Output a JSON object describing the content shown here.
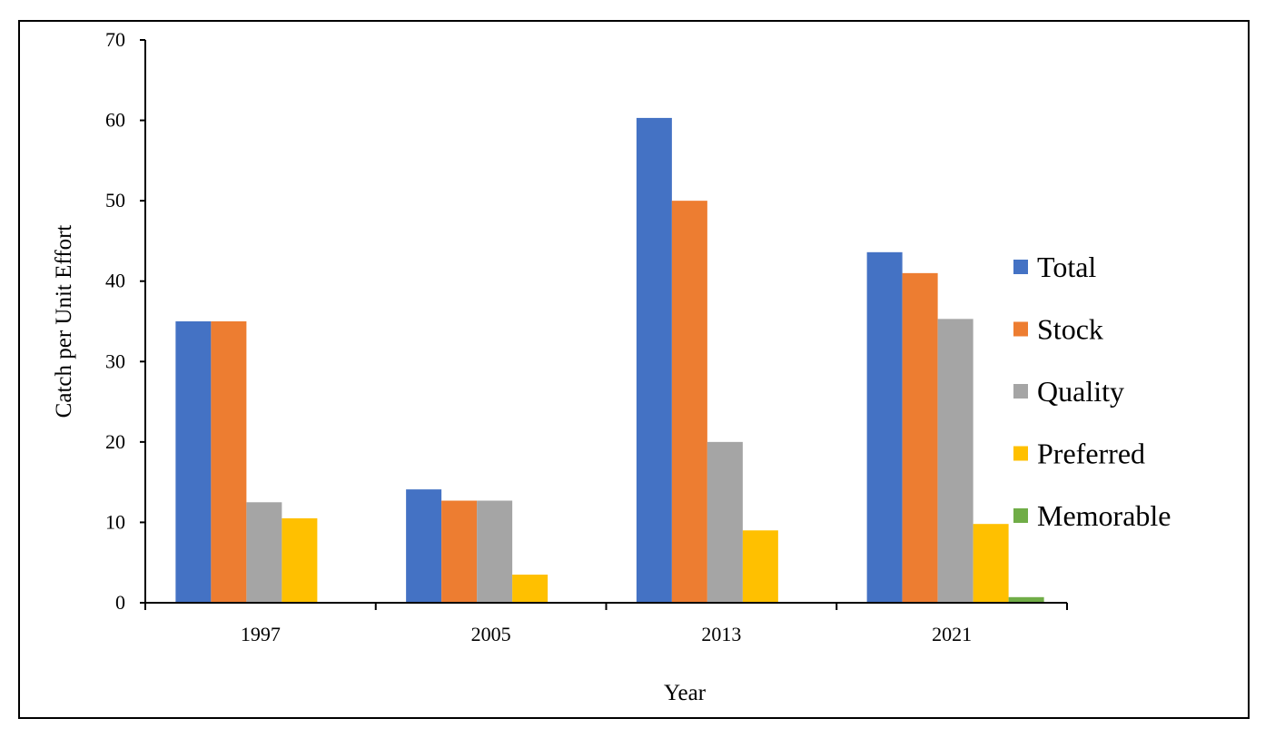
{
  "chart_data": {
    "type": "bar",
    "title": "",
    "xlabel": "Year",
    "ylabel": "Catch per Unit Effort",
    "ylim": [
      0,
      70
    ],
    "yticks": [
      0,
      10,
      20,
      30,
      40,
      50,
      60,
      70
    ],
    "categories": [
      "1997",
      "2005",
      "2013",
      "2021"
    ],
    "series": [
      {
        "name": "Total",
        "color": "#4472C4",
        "values": [
          35,
          14.1,
          60.3,
          43.6
        ]
      },
      {
        "name": "Stock",
        "color": "#ED7D31",
        "values": [
          35,
          12.7,
          50,
          41
        ]
      },
      {
        "name": "Quality",
        "color": "#A5A5A5",
        "values": [
          12.5,
          12.7,
          20,
          35.3
        ]
      },
      {
        "name": "Preferred",
        "color": "#FFC000",
        "values": [
          10.5,
          3.5,
          9,
          9.8
        ]
      },
      {
        "name": "Memorable",
        "color": "#70AD47",
        "values": [
          0,
          0,
          0,
          0.7
        ]
      }
    ],
    "legend_position": "right",
    "grid": false
  }
}
